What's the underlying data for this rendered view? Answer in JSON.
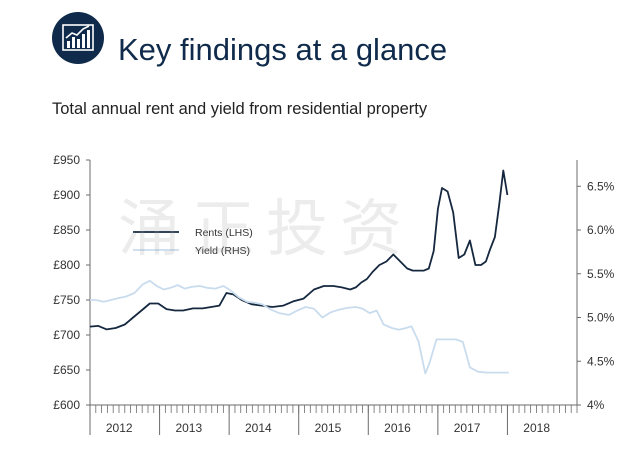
{
  "header": {
    "title": "Key findings at a glance",
    "subtitle": "Total annual rent and yield from residential property",
    "logo_icon": "bar-chart-trend-icon"
  },
  "watermark": "涌正投资",
  "colors": {
    "navy": "#0f2a4a",
    "rent_line": "#16283f",
    "yield_line": "#c9dcee",
    "axis": "#6b6b6b"
  },
  "chart_data": {
    "type": "line",
    "title": "Total annual rent and yield from residential property",
    "x_tick_labels": [
      "2012",
      "2013",
      "2014",
      "2015",
      "2016",
      "2017",
      "2018"
    ],
    "xlim": [
      2011.58,
      2018.58
    ],
    "y_left": {
      "tick_labels": [
        "£950",
        "£900",
        "£850",
        "£800",
        "£750",
        "£700",
        "£650",
        "£600"
      ],
      "ylim": [
        600,
        950
      ]
    },
    "y_right": {
      "tick_labels": [
        "6.5%",
        "6.0%",
        "5.5%",
        "5.0%",
        "4.5%",
        "4%"
      ],
      "ylim": [
        4.0,
        6.8
      ]
    },
    "legend": {
      "placement": "upper-left"
    },
    "series": [
      {
        "name": "Rents (LHS)",
        "axis": "left",
        "color": "#16283f",
        "x": [
          2011.58,
          2011.7,
          2011.82,
          2011.95,
          2012.08,
          2012.2,
          2012.32,
          2012.44,
          2012.56,
          2012.68,
          2012.8,
          2012.92,
          2013.06,
          2013.2,
          2013.32,
          2013.44,
          2013.54,
          2013.64,
          2013.76,
          2013.9,
          2014.05,
          2014.2,
          2014.36,
          2014.5,
          2014.65,
          2014.8,
          2014.94,
          2015.08,
          2015.2,
          2015.32,
          2015.4,
          2015.48,
          2015.56,
          2015.64,
          2015.74,
          2015.84,
          2015.94,
          2016.04,
          2016.14,
          2016.22,
          2016.3,
          2016.38,
          2016.45,
          2016.52,
          2016.58,
          2016.64,
          2016.72,
          2016.8,
          2016.88,
          2016.96,
          2017.04,
          2017.12,
          2017.2,
          2017.27,
          2017.33,
          2017.4,
          2017.46,
          2017.52,
          2017.58
        ],
        "y": [
          712,
          713,
          708,
          710,
          715,
          725,
          735,
          745,
          745,
          737,
          735,
          735,
          738,
          738,
          740,
          742,
          760,
          758,
          750,
          744,
          742,
          740,
          742,
          748,
          752,
          765,
          770,
          770,
          768,
          765,
          768,
          775,
          780,
          790,
          800,
          805,
          815,
          805,
          795,
          792,
          792,
          792,
          795,
          820,
          880,
          910,
          905,
          875,
          810,
          815,
          835,
          800,
          800,
          805,
          822,
          840,
          885,
          935,
          900
        ]
      },
      {
        "name": "Yield (RHS)",
        "axis": "right",
        "color": "#c9dcee",
        "x": [
          2011.58,
          2011.66,
          2011.78,
          2011.88,
          2011.98,
          2012.1,
          2012.22,
          2012.34,
          2012.44,
          2012.54,
          2012.64,
          2012.74,
          2012.84,
          2012.94,
          2013.04,
          2013.16,
          2013.26,
          2013.38,
          2013.5,
          2013.6,
          2013.72,
          2013.84,
          2013.94,
          2014.06,
          2014.18,
          2014.3,
          2014.44,
          2014.56,
          2014.68,
          2014.8,
          2014.92,
          2015.04,
          2015.16,
          2015.28,
          2015.4,
          2015.5,
          2015.6,
          2015.7,
          2015.8,
          2015.92,
          2016.02,
          2016.12,
          2016.2,
          2016.3,
          2016.4,
          2016.46,
          2016.56,
          2016.7,
          2016.84,
          2016.94,
          2017.04,
          2017.16,
          2017.3,
          2017.44,
          2017.6
        ],
        "y": [
          5.2,
          5.2,
          5.18,
          5.2,
          5.22,
          5.24,
          5.28,
          5.38,
          5.42,
          5.36,
          5.32,
          5.34,
          5.37,
          5.33,
          5.35,
          5.36,
          5.34,
          5.33,
          5.36,
          5.31,
          5.23,
          5.18,
          5.17,
          5.15,
          5.09,
          5.05,
          5.03,
          5.08,
          5.12,
          5.1,
          5.0,
          5.06,
          5.09,
          5.11,
          5.12,
          5.1,
          5.05,
          5.08,
          4.92,
          4.88,
          4.86,
          4.88,
          4.9,
          4.73,
          4.36,
          4.48,
          4.75,
          4.75,
          4.75,
          4.72,
          4.43,
          4.38,
          4.37,
          4.37,
          4.37
        ]
      }
    ]
  }
}
